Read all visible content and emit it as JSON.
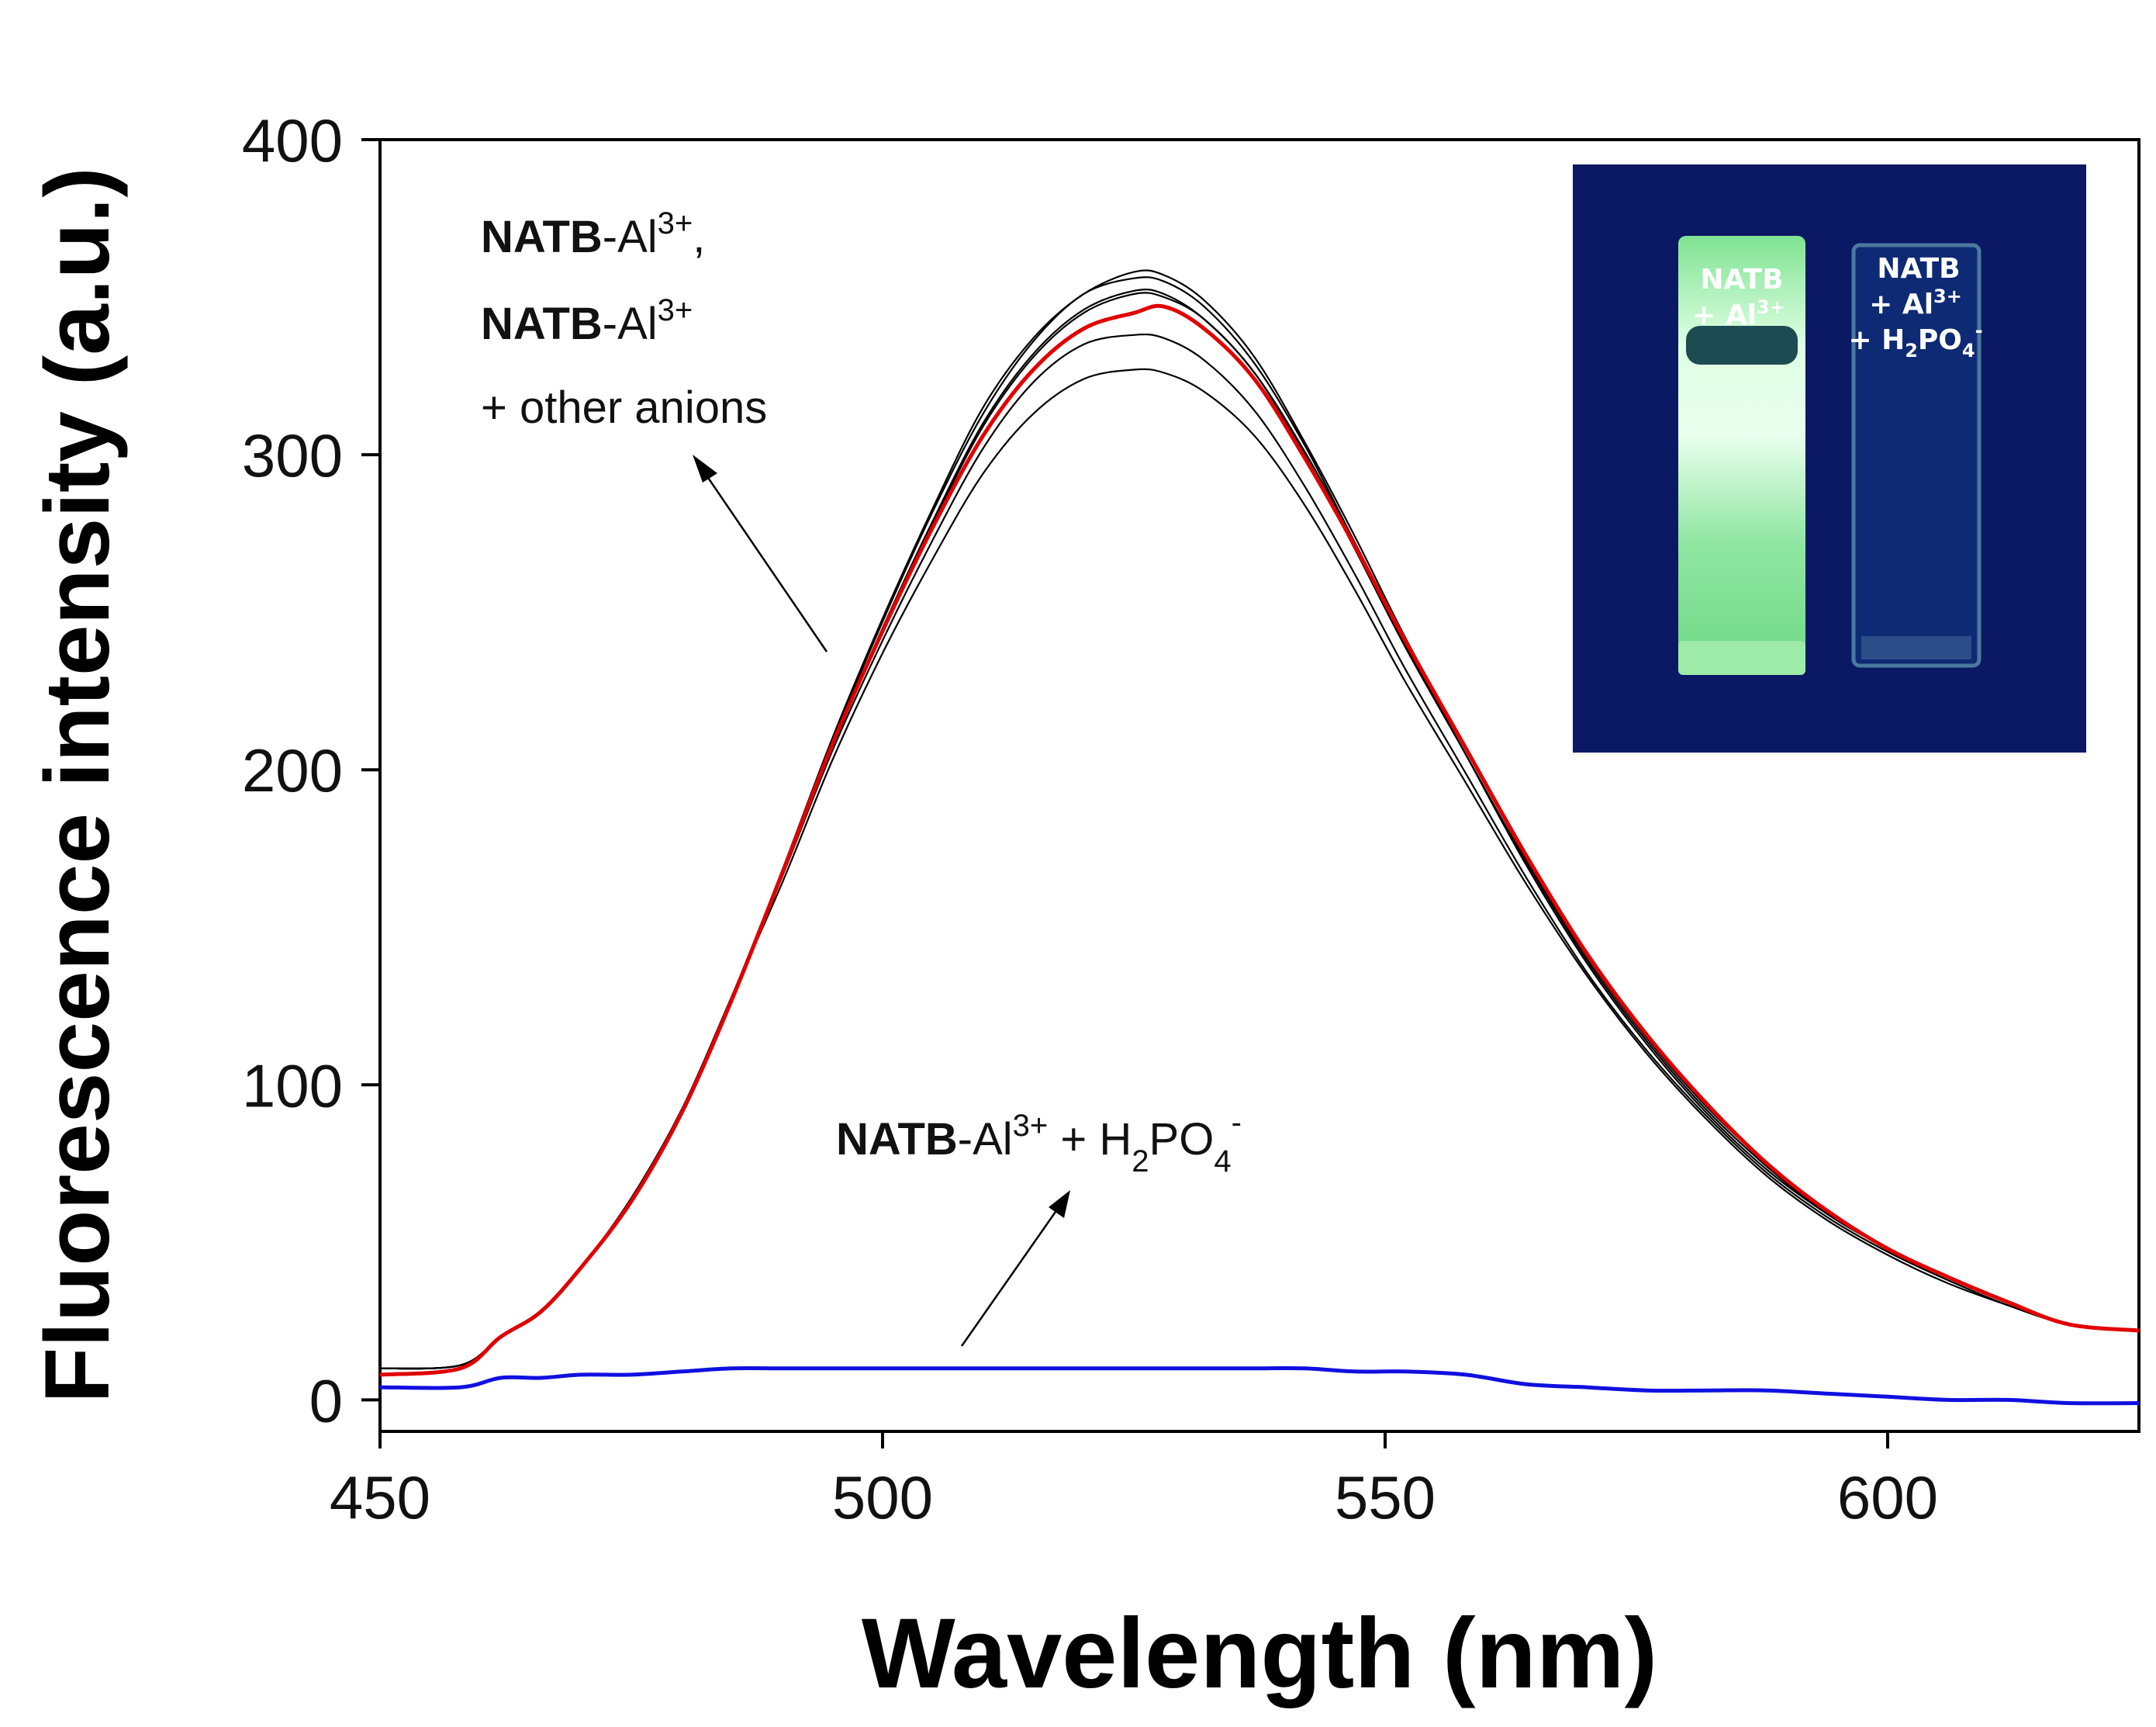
{
  "chart_data": {
    "type": "line",
    "xlabel": "Wavelength (nm)",
    "ylabel": "Fluorescence intensity (a.u.)",
    "xlim": [
      450,
      625
    ],
    "ylim": [
      -10,
      400
    ],
    "x_ticks": [
      450,
      500,
      550,
      600
    ],
    "y_ticks": [
      0,
      100,
      200,
      300,
      400
    ],
    "x_tick_labels": [
      "450",
      "500",
      "550",
      "600"
    ],
    "y_tick_labels": [
      "0",
      "100",
      "200",
      "300",
      "400"
    ],
    "x": [
      450,
      458,
      462,
      466,
      470,
      475,
      480,
      485,
      490,
      495,
      500,
      505,
      510,
      515,
      520,
      525,
      528,
      532,
      537,
      542,
      547,
      552,
      558,
      564,
      570,
      576,
      582,
      588,
      594,
      600,
      606,
      612,
      618,
      625
    ],
    "series": [
      {
        "name": "NATB-Al3+ + other anions (1)",
        "color": "#000000",
        "values": [
          10,
          11,
          20,
          28,
          42,
          64,
          92,
          128,
          168,
          210,
          248,
          283,
          315,
          337,
          351,
          358,
          357,
          349,
          331,
          304,
          274,
          242,
          207,
          172,
          141,
          115,
          93,
          75,
          60,
          48,
          39,
          31,
          24,
          22
        ]
      },
      {
        "name": "NATB-Al3+ + other anions (2)",
        "color": "#000000",
        "values": [
          10,
          11,
          20,
          28,
          42,
          64,
          92,
          128,
          167,
          208,
          245,
          279,
          310,
          332,
          346,
          352,
          351,
          343,
          326,
          300,
          270,
          239,
          205,
          171,
          140,
          114,
          92,
          74,
          59,
          48,
          39,
          31,
          24,
          22
        ]
      },
      {
        "name": "NATB-Al3+ + other anions (3)",
        "color": "#000000",
        "values": [
          10,
          11,
          20,
          28,
          42,
          64,
          92,
          128,
          166,
          206,
          241,
          273,
          302,
          323,
          335,
          338,
          337,
          330,
          314,
          290,
          262,
          232,
          199,
          166,
          136,
          111,
          90,
          72,
          58,
          47,
          38,
          30,
          24,
          22
        ]
      },
      {
        "name": "NATB-Al3+ + other anions (4)",
        "color": "#000000",
        "values": [
          10,
          11,
          20,
          28,
          42,
          64,
          92,
          128,
          164,
          203,
          237,
          267,
          294,
          313,
          324,
          327,
          326,
          320,
          306,
          284,
          257,
          228,
          196,
          164,
          135,
          110,
          89,
          71,
          57,
          46,
          37,
          30,
          24,
          22
        ]
      },
      {
        "name": "NATB-Al3+ + other anions (5)",
        "color": "#000000",
        "values": [
          10,
          11,
          20,
          28,
          42,
          64,
          92,
          128,
          166,
          207,
          244,
          278,
          309,
          331,
          345,
          351,
          350,
          343,
          326,
          301,
          272,
          241,
          207,
          173,
          142,
          116,
          94,
          75,
          60,
          48,
          39,
          31,
          24,
          22
        ]
      },
      {
        "name": "NATB-Al3+ + other anions (6)",
        "color": "#000000",
        "values": [
          10,
          11,
          20,
          28,
          42,
          64,
          92,
          128,
          167,
          209,
          247,
          282,
          313,
          336,
          351,
          356,
          355,
          347,
          329,
          303,
          272,
          240,
          205,
          170,
          139,
          113,
          91,
          73,
          59,
          48,
          39,
          31,
          24,
          22
        ]
      },
      {
        "name": "NATB-Al3+",
        "color": "#e00000",
        "values": [
          8,
          10,
          20,
          28,
          42,
          63,
          91,
          127,
          167,
          208,
          244,
          277,
          306,
          327,
          340,
          345,
          347,
          340,
          324,
          299,
          271,
          241,
          207,
          173,
          142,
          116,
          94,
          75,
          60,
          48,
          39,
          31,
          24,
          22
        ]
      },
      {
        "name": "NATB-Al3+ + H2PO4-",
        "color": "#1010e0",
        "values": [
          4,
          4,
          7,
          7,
          8,
          8,
          9,
          10,
          10,
          10,
          10,
          10,
          10,
          10,
          10,
          10,
          10,
          10,
          10,
          10,
          9,
          9,
          8,
          5,
          4,
          3,
          3,
          3,
          2,
          1,
          0,
          0,
          -1,
          -1
        ]
      }
    ]
  },
  "annotations": {
    "upper_label_bold_1": "NATB",
    "upper_label_text_1": "-Al",
    "upper_label_sup_1": "3+",
    "upper_label_comma": ",",
    "upper_label_bold_2": "NATB",
    "upper_label_text_2": "-Al",
    "upper_label_sup_2": "3+",
    "upper_label_line_3": "+ other anions",
    "lower_label_bold": "NATB",
    "lower_label_text": "-Al",
    "lower_label_sup": "3+",
    "lower_label_plus": " + H",
    "lower_label_sub1": "2",
    "lower_label_po": "PO",
    "lower_label_sub2": "4",
    "lower_label_sup2": "-"
  },
  "inset_photo": {
    "left_cuvette_line1": "NATB",
    "left_cuvette_line2": "+ Al",
    "left_cuvette_sup": "3+",
    "right_cuvette_line1": "NATB",
    "right_cuvette_line2": "+ Al",
    "right_cuvette_sup": "3+",
    "right_cuvette_line3": "+ H",
    "right_cuvette_sub1": "2",
    "right_cuvette_po": "PO",
    "right_cuvette_sub2": "4",
    "right_cuvette_sup2": "-",
    "colors": {
      "background": "#0a1560",
      "glow": "#a8f0b0",
      "glow_core": "#e6ffe8"
    }
  }
}
